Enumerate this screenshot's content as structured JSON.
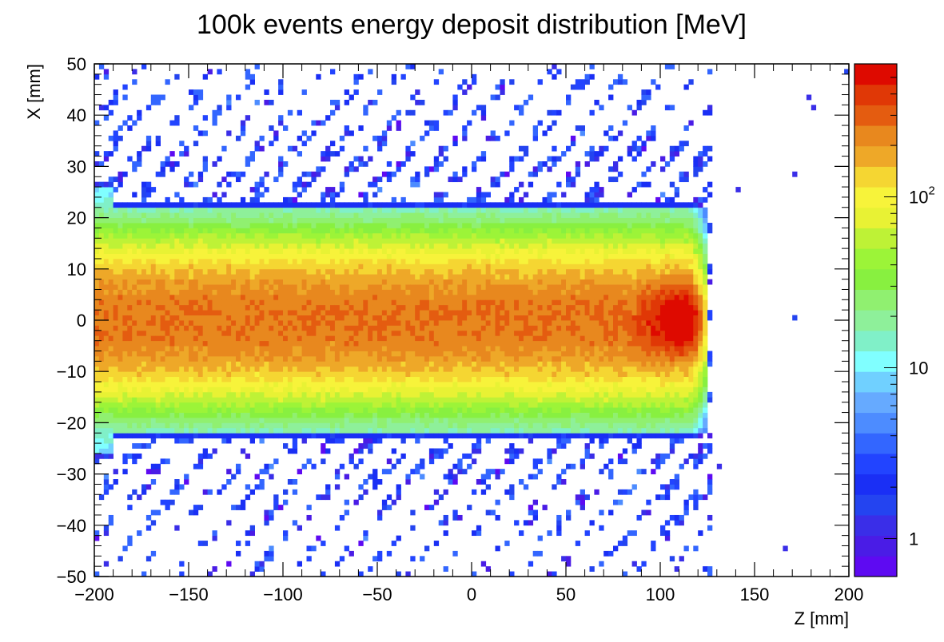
{
  "chart_data": {
    "type": "heatmap",
    "title": "100k events energy deposit distribution [MeV]",
    "xlabel": "Z [mm]",
    "ylabel": "X [mm]",
    "xlim": [
      -200,
      200
    ],
    "ylim": [
      -50,
      50
    ],
    "x_ticks": [
      -200,
      -150,
      -100,
      -50,
      0,
      50,
      100,
      150,
      200
    ],
    "x_tick_labels": [
      "−200",
      "−150",
      "−100",
      "−50",
      "0",
      "50",
      "100",
      "150",
      "200"
    ],
    "y_ticks": [
      50,
      40,
      30,
      20,
      10,
      0,
      -10,
      -20,
      -30,
      -40,
      -50
    ],
    "y_tick_labels": [
      "50",
      "40",
      "30",
      "20",
      "10",
      "0",
      "−10",
      "−20",
      "−30",
      "−40",
      "−50"
    ],
    "z_scale": "log",
    "zlim": [
      0.6,
      600
    ],
    "colorbar": {
      "ticks": [
        1,
        10,
        100
      ],
      "labels": [
        {
          "base": "1",
          "exp": ""
        },
        {
          "base": "10",
          "exp": ""
        },
        {
          "base": "10",
          "exp": "2"
        }
      ]
    },
    "palette": [
      "#5e0af2",
      "#4a1ce6",
      "#3a2ee8",
      "#2444f0",
      "#1a2ff5",
      "#2244ff",
      "#3366ff",
      "#4d8cff",
      "#66aaff",
      "#70d0ff",
      "#80ffff",
      "#80f0c8",
      "#8ef09a",
      "#90f070",
      "#88f040",
      "#9cf438",
      "#bef236",
      "#e8f234",
      "#f7f33a",
      "#f5d632",
      "#eea828",
      "#e8881e",
      "#e45c10",
      "#e03806",
      "#de0a00"
    ],
    "structure": {
      "core_half_width_mm": 10,
      "core_value": 250,
      "band_half_width_mm": 23,
      "band_value": 30,
      "peak_z_mm": 112,
      "peak_value": 600,
      "range_end_z_mm": 125,
      "scatter_z_range_mm": [
        -200,
        125
      ]
    }
  }
}
